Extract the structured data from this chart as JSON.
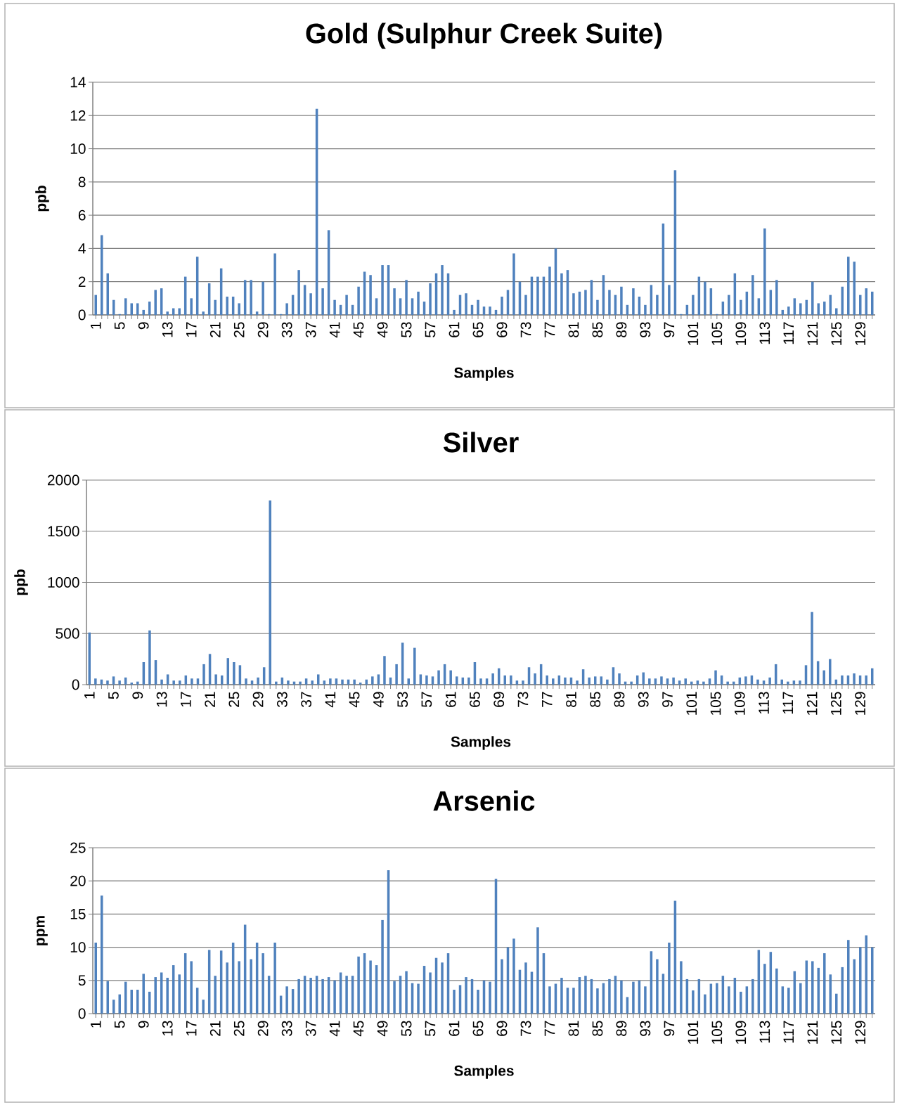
{
  "chart_data": [
    {
      "type": "bar",
      "title": "Gold (Sulphur Creek Suite)",
      "xlabel": "Samples",
      "ylabel": "ppb",
      "color": "#4f81bd",
      "grid": "y",
      "ylim": [
        0,
        14
      ],
      "yticks": [
        0,
        2,
        4,
        6,
        8,
        10,
        12,
        14
      ],
      "categories": [
        "1",
        null,
        null,
        null,
        "5",
        null,
        null,
        null,
        "9",
        null,
        null,
        null,
        "13",
        null,
        null,
        null,
        "17",
        null,
        null,
        null,
        "21",
        null,
        null,
        null,
        "25",
        null,
        null,
        null,
        "29",
        null,
        null,
        null,
        "33",
        null,
        null,
        null,
        "37",
        null,
        null,
        null,
        "41",
        null,
        null,
        null,
        "45",
        null,
        null,
        null,
        "49",
        null,
        null,
        null,
        "53",
        null,
        null,
        null,
        "57",
        null,
        null,
        null,
        "61",
        null,
        null,
        null,
        "65",
        null,
        null,
        null,
        "69",
        null,
        null,
        null,
        "73",
        null,
        null,
        null,
        "77",
        null,
        null,
        null,
        "81",
        null,
        null,
        null,
        "85",
        null,
        null,
        null,
        "89",
        null,
        null,
        null,
        "93",
        null,
        null,
        null,
        "97",
        null,
        null,
        null,
        "101",
        null,
        null,
        null,
        "105",
        null,
        null,
        null,
        "109",
        null,
        null,
        null,
        "113",
        null,
        null,
        null,
        "117",
        null,
        null,
        null,
        "121",
        null,
        null,
        null,
        "125",
        null,
        null,
        null,
        "129",
        null,
        null
      ],
      "values": [
        1.2,
        4.8,
        2.5,
        0.9,
        0.05,
        1.0,
        0.7,
        0.7,
        0.3,
        0.8,
        1.5,
        1.6,
        0.2,
        0.4,
        0.4,
        2.3,
        1.0,
        3.5,
        0.2,
        1.9,
        0.9,
        2.8,
        1.1,
        1.1,
        0.7,
        2.1,
        2.1,
        0.2,
        2.0,
        0.05,
        3.7,
        0.05,
        0.7,
        1.2,
        2.7,
        1.8,
        1.3,
        12.4,
        1.6,
        5.1,
        0.9,
        0.6,
        1.2,
        0.6,
        1.7,
        2.6,
        2.4,
        1.0,
        3.0,
        3.0,
        1.6,
        1.0,
        2.1,
        1.0,
        1.4,
        0.8,
        1.9,
        2.5,
        3.0,
        2.5,
        0.3,
        1.2,
        1.3,
        0.6,
        0.9,
        0.5,
        0.5,
        0.3,
        1.1,
        1.5,
        3.7,
        2.0,
        1.2,
        2.3,
        2.3,
        2.3,
        2.9,
        4.0,
        2.5,
        2.7,
        1.3,
        1.4,
        1.5,
        2.1,
        0.9,
        2.4,
        1.5,
        1.2,
        1.7,
        0.6,
        1.6,
        1.1,
        0.6,
        1.8,
        1.2,
        5.5,
        1.8,
        8.7,
        0.05,
        0.6,
        1.2,
        2.3,
        2.0,
        1.6,
        0.05,
        0.8,
        1.2,
        2.5,
        0.9,
        1.4,
        2.4,
        1.0,
        5.2,
        1.5,
        2.1,
        0.3,
        0.5,
        1.0,
        0.7,
        0.9,
        2.0,
        0.7,
        0.8,
        1.2,
        0.4,
        1.7,
        3.5,
        3.2,
        1.2,
        1.6,
        1.4
      ]
    },
    {
      "type": "bar",
      "title": "Silver",
      "xlabel": "Samples",
      "ylabel": "ppb",
      "color": "#4f81bd",
      "grid": "y",
      "ylim": [
        0,
        2000
      ],
      "yticks": [
        0,
        500,
        1000,
        1500,
        2000
      ],
      "categories": [
        "1",
        null,
        null,
        null,
        "5",
        null,
        null,
        null,
        "9",
        null,
        null,
        null,
        "13",
        null,
        null,
        null,
        "17",
        null,
        null,
        null,
        "21",
        null,
        null,
        null,
        "25",
        null,
        null,
        null,
        "29",
        null,
        null,
        null,
        "33",
        null,
        null,
        null,
        "37",
        null,
        null,
        null,
        "41",
        null,
        null,
        null,
        "45",
        null,
        null,
        null,
        "49",
        null,
        null,
        null,
        "53",
        null,
        null,
        null,
        "57",
        null,
        null,
        null,
        "61",
        null,
        null,
        null,
        "65",
        null,
        null,
        null,
        "69",
        null,
        null,
        null,
        "73",
        null,
        null,
        null,
        "77",
        null,
        null,
        null,
        "81",
        null,
        null,
        null,
        "85",
        null,
        null,
        null,
        "89",
        null,
        null,
        null,
        "93",
        null,
        null,
        null,
        "97",
        null,
        null,
        null,
        "101",
        null,
        null,
        null,
        "105",
        null,
        null,
        null,
        "109",
        null,
        null,
        null,
        "113",
        null,
        null,
        null,
        "117",
        null,
        null,
        null,
        "121",
        null,
        null,
        null,
        "125",
        null,
        null,
        null,
        "129",
        null,
        null
      ],
      "values": [
        510,
        60,
        50,
        40,
        80,
        40,
        70,
        20,
        30,
        220,
        530,
        240,
        50,
        100,
        40,
        40,
        90,
        60,
        60,
        200,
        300,
        100,
        90,
        260,
        220,
        190,
        60,
        40,
        70,
        170,
        1800,
        30,
        70,
        40,
        30,
        30,
        60,
        40,
        100,
        40,
        60,
        60,
        50,
        50,
        50,
        20,
        50,
        80,
        100,
        280,
        70,
        200,
        410,
        60,
        360,
        100,
        90,
        80,
        140,
        200,
        140,
        80,
        70,
        70,
        220,
        60,
        60,
        110,
        160,
        90,
        90,
        40,
        40,
        170,
        110,
        200,
        90,
        60,
        90,
        70,
        70,
        40,
        150,
        70,
        80,
        80,
        50,
        170,
        110,
        30,
        30,
        90,
        120,
        60,
        60,
        80,
        60,
        70,
        40,
        60,
        30,
        40,
        30,
        60,
        140,
        90,
        30,
        30,
        70,
        80,
        90,
        50,
        40,
        70,
        200,
        50,
        30,
        40,
        40,
        190,
        710,
        230,
        140,
        250,
        50,
        90,
        90,
        110,
        90,
        90,
        160
      ]
    },
    {
      "type": "bar",
      "title": "Arsenic",
      "xlabel": "Samples",
      "ylabel": "ppm",
      "color": "#4f81bd",
      "grid": "y",
      "ylim": [
        0,
        25
      ],
      "yticks": [
        0,
        5,
        10,
        15,
        20,
        25
      ],
      "categories": [
        "1",
        null,
        null,
        null,
        "5",
        null,
        null,
        null,
        "9",
        null,
        null,
        null,
        "13",
        null,
        null,
        null,
        "17",
        null,
        null,
        null,
        "21",
        null,
        null,
        null,
        "25",
        null,
        null,
        null,
        "29",
        null,
        null,
        null,
        "33",
        null,
        null,
        null,
        "37",
        null,
        null,
        null,
        "41",
        null,
        null,
        null,
        "45",
        null,
        null,
        null,
        "49",
        null,
        null,
        null,
        "53",
        null,
        null,
        null,
        "57",
        null,
        null,
        null,
        "61",
        null,
        null,
        null,
        "65",
        null,
        null,
        null,
        "69",
        null,
        null,
        null,
        "73",
        null,
        null,
        null,
        "77",
        null,
        null,
        null,
        "81",
        null,
        null,
        null,
        "85",
        null,
        null,
        null,
        "89",
        null,
        null,
        null,
        "93",
        null,
        null,
        null,
        "97",
        null,
        null,
        null,
        "101",
        null,
        null,
        null,
        "105",
        null,
        null,
        null,
        "109",
        null,
        null,
        null,
        "113",
        null,
        null,
        null,
        "117",
        null,
        null,
        null,
        "121",
        null,
        null,
        null,
        "125",
        null,
        null,
        null,
        "129",
        null,
        null
      ],
      "values": [
        10.7,
        17.8,
        4.9,
        2.1,
        2.9,
        4.8,
        3.6,
        3.6,
        6.0,
        3.3,
        5.5,
        6.2,
        5.4,
        7.3,
        5.9,
        9.1,
        7.9,
        3.9,
        2.1,
        9.6,
        5.7,
        9.5,
        7.7,
        10.7,
        7.9,
        13.4,
        8.2,
        10.7,
        9.1,
        5.7,
        10.7,
        2.7,
        4.1,
        3.7,
        5.2,
        5.7,
        5.4,
        5.7,
        5.2,
        5.5,
        5.0,
        6.2,
        5.7,
        5.7,
        8.6,
        9.1,
        8.0,
        7.3,
        14.1,
        21.6,
        4.9,
        5.7,
        6.4,
        4.6,
        4.5,
        7.2,
        6.2,
        8.4,
        7.7,
        9.1,
        3.6,
        4.3,
        5.5,
        5.2,
        3.6,
        5.0,
        4.8,
        20.3,
        8.2,
        10.0,
        11.3,
        6.6,
        7.7,
        6.3,
        13.0,
        9.1,
        4.1,
        4.5,
        5.4,
        3.9,
        3.9,
        5.5,
        5.7,
        5.2,
        3.8,
        4.6,
        5.2,
        5.7,
        5.0,
        2.5,
        4.8,
        5.0,
        4.1,
        9.4,
        8.2,
        6.0,
        10.7,
        17.0,
        7.9,
        5.2,
        3.5,
        5.2,
        2.9,
        4.5,
        4.6,
        5.7,
        4.1,
        5.4,
        3.3,
        4.1,
        5.2,
        9.6,
        7.5,
        9.3,
        6.8,
        4.1,
        3.9,
        6.4,
        4.6,
        8.0,
        7.9,
        6.9,
        9.1,
        5.9,
        3.0,
        7.0,
        11.1,
        8.2,
        10.0,
        11.8,
        10.0
      ]
    }
  ]
}
